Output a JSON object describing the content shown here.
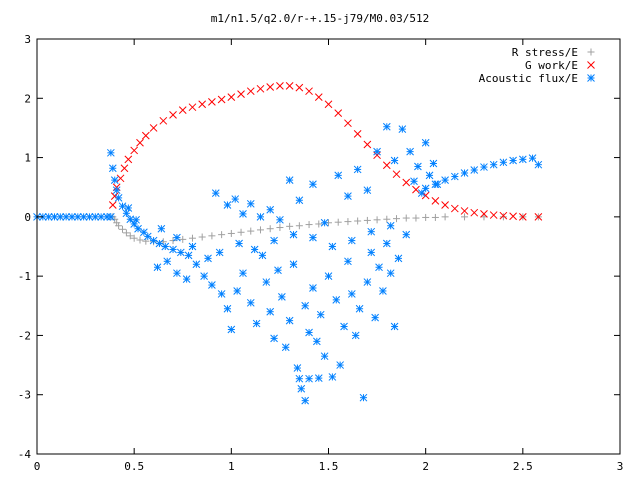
{
  "colors": {
    "r_stress": "#a0a0a0",
    "g_work": "#ff0000",
    "acoustic_flux": "#0080ff",
    "axis": "#000000"
  },
  "chart_data": {
    "type": "scatter",
    "title": "m1/n1.5/q2.0/r-+.15-j79/M0.03/512",
    "xlabel": "",
    "ylabel": "",
    "xlim": [
      0,
      3
    ],
    "ylim": [
      -4,
      3
    ],
    "xticks": [
      "0",
      "0.5",
      "1",
      "1.5",
      "2",
      "2.5",
      "3"
    ],
    "yticks": [
      "3",
      "2",
      "1",
      "0",
      "-1",
      "-2",
      "-3",
      "-4"
    ],
    "grid": false,
    "legend_position": "top-right",
    "series": [
      {
        "name": "R stress/E",
        "marker": "+",
        "color": "#a0a0a0",
        "points": [
          [
            0.39,
            0.0
          ],
          [
            0.4,
            -0.04
          ],
          [
            0.41,
            -0.1
          ],
          [
            0.42,
            -0.15
          ],
          [
            0.44,
            -0.21
          ],
          [
            0.46,
            -0.27
          ],
          [
            0.48,
            -0.32
          ],
          [
            0.5,
            -0.36
          ],
          [
            0.53,
            -0.39
          ],
          [
            0.56,
            -0.41
          ],
          [
            0.6,
            -0.42
          ],
          [
            0.65,
            -0.42
          ],
          [
            0.7,
            -0.4
          ],
          [
            0.75,
            -0.38
          ],
          [
            0.8,
            -0.36
          ],
          [
            0.85,
            -0.34
          ],
          [
            0.9,
            -0.32
          ],
          [
            0.95,
            -0.3
          ],
          [
            1.0,
            -0.28
          ],
          [
            1.05,
            -0.26
          ],
          [
            1.1,
            -0.24
          ],
          [
            1.15,
            -0.22
          ],
          [
            1.2,
            -0.2
          ],
          [
            1.25,
            -0.18
          ],
          [
            1.3,
            -0.16
          ],
          [
            1.35,
            -0.15
          ],
          [
            1.4,
            -0.13
          ],
          [
            1.45,
            -0.12
          ],
          [
            1.5,
            -0.1
          ],
          [
            1.55,
            -0.09
          ],
          [
            1.6,
            -0.08
          ],
          [
            1.65,
            -0.07
          ],
          [
            1.7,
            -0.06
          ],
          [
            1.75,
            -0.05
          ],
          [
            1.8,
            -0.04
          ],
          [
            1.85,
            -0.03
          ],
          [
            1.9,
            -0.02
          ],
          [
            1.95,
            -0.02
          ],
          [
            2.0,
            -0.01
          ],
          [
            2.05,
            -0.01
          ],
          [
            2.1,
            0.0
          ],
          [
            2.2,
            0.0
          ],
          [
            2.3,
            0.0
          ],
          [
            2.4,
            0.0
          ],
          [
            2.5,
            0.0
          ],
          [
            2.58,
            0.0
          ]
        ]
      },
      {
        "name": "G work/E",
        "marker": "x",
        "color": "#ff0000",
        "points": [
          [
            0.39,
            0.2
          ],
          [
            0.4,
            0.35
          ],
          [
            0.41,
            0.5
          ],
          [
            0.43,
            0.65
          ],
          [
            0.45,
            0.82
          ],
          [
            0.47,
            0.97
          ],
          [
            0.5,
            1.12
          ],
          [
            0.53,
            1.25
          ],
          [
            0.56,
            1.37
          ],
          [
            0.6,
            1.5
          ],
          [
            0.65,
            1.62
          ],
          [
            0.7,
            1.72
          ],
          [
            0.75,
            1.8
          ],
          [
            0.8,
            1.85
          ],
          [
            0.85,
            1.9
          ],
          [
            0.9,
            1.94
          ],
          [
            0.95,
            1.98
          ],
          [
            1.0,
            2.02
          ],
          [
            1.05,
            2.07
          ],
          [
            1.1,
            2.12
          ],
          [
            1.15,
            2.16
          ],
          [
            1.2,
            2.19
          ],
          [
            1.25,
            2.21
          ],
          [
            1.3,
            2.21
          ],
          [
            1.35,
            2.18
          ],
          [
            1.4,
            2.12
          ],
          [
            1.45,
            2.02
          ],
          [
            1.5,
            1.9
          ],
          [
            1.55,
            1.75
          ],
          [
            1.6,
            1.58
          ],
          [
            1.65,
            1.4
          ],
          [
            1.7,
            1.22
          ],
          [
            1.75,
            1.04
          ],
          [
            1.8,
            0.87
          ],
          [
            1.85,
            0.72
          ],
          [
            1.9,
            0.58
          ],
          [
            1.95,
            0.46
          ],
          [
            2.0,
            0.36
          ],
          [
            2.05,
            0.27
          ],
          [
            2.1,
            0.2
          ],
          [
            2.15,
            0.14
          ],
          [
            2.2,
            0.1
          ],
          [
            2.25,
            0.07
          ],
          [
            2.3,
            0.05
          ],
          [
            2.35,
            0.03
          ],
          [
            2.4,
            0.02
          ],
          [
            2.45,
            0.01
          ],
          [
            2.5,
            0.0
          ],
          [
            2.58,
            0.0
          ]
        ]
      },
      {
        "name": "Acoustic flux/E",
        "marker": "*",
        "color": "#0080ff",
        "points": [
          [
            0.0,
            0.0
          ],
          [
            0.03,
            0.0
          ],
          [
            0.06,
            0.0
          ],
          [
            0.09,
            0.0
          ],
          [
            0.12,
            0.0
          ],
          [
            0.15,
            0.0
          ],
          [
            0.18,
            0.0
          ],
          [
            0.21,
            0.0
          ],
          [
            0.24,
            0.0
          ],
          [
            0.27,
            0.0
          ],
          [
            0.3,
            0.0
          ],
          [
            0.33,
            0.0
          ],
          [
            0.36,
            0.0
          ],
          [
            0.38,
            0.0
          ],
          [
            0.38,
            1.08
          ],
          [
            0.39,
            0.82
          ],
          [
            0.4,
            0.62
          ],
          [
            0.41,
            0.45
          ],
          [
            0.42,
            0.32
          ],
          [
            0.44,
            0.18
          ],
          [
            0.46,
            0.06
          ],
          [
            0.48,
            -0.04
          ],
          [
            0.5,
            -0.12
          ],
          [
            0.52,
            -0.2
          ],
          [
            0.55,
            -0.26
          ],
          [
            0.47,
            0.15
          ],
          [
            0.51,
            -0.05
          ],
          [
            0.57,
            -0.33
          ],
          [
            0.6,
            -0.4
          ],
          [
            0.63,
            -0.45
          ],
          [
            0.66,
            -0.5
          ],
          [
            0.7,
            -0.55
          ],
          [
            0.74,
            -0.6
          ],
          [
            0.78,
            -0.65
          ],
          [
            0.62,
            -0.85
          ],
          [
            0.67,
            -0.75
          ],
          [
            0.72,
            -0.95
          ],
          [
            0.77,
            -1.05
          ],
          [
            0.82,
            -0.8
          ],
          [
            0.86,
            -1.0
          ],
          [
            0.9,
            -1.15
          ],
          [
            0.95,
            -1.3
          ],
          [
            0.98,
            -1.55
          ],
          [
            1.0,
            -1.9
          ],
          [
            1.03,
            -1.25
          ],
          [
            1.06,
            -0.95
          ],
          [
            1.1,
            -1.45
          ],
          [
            1.13,
            -1.8
          ],
          [
            1.16,
            -0.65
          ],
          [
            1.18,
            -1.1
          ],
          [
            1.2,
            -1.6
          ],
          [
            1.22,
            -2.05
          ],
          [
            1.24,
            -0.9
          ],
          [
            1.26,
            -1.35
          ],
          [
            1.28,
            -2.2
          ],
          [
            1.3,
            -1.75
          ],
          [
            1.32,
            -0.8
          ],
          [
            1.34,
            -2.55
          ],
          [
            1.36,
            -2.9
          ],
          [
            1.38,
            -1.5
          ],
          [
            1.4,
            -1.95
          ],
          [
            1.42,
            -1.2
          ],
          [
            1.44,
            -2.1
          ],
          [
            1.46,
            -1.65
          ],
          [
            1.48,
            -2.35
          ],
          [
            1.5,
            -1.0
          ],
          [
            1.52,
            -2.7
          ],
          [
            1.54,
            -1.4
          ],
          [
            1.56,
            -2.5
          ],
          [
            1.58,
            -1.85
          ],
          [
            1.6,
            -0.75
          ],
          [
            1.62,
            -1.3
          ],
          [
            1.64,
            -2.0
          ],
          [
            1.66,
            -1.55
          ],
          [
            1.68,
            -3.05
          ],
          [
            1.7,
            -1.1
          ],
          [
            1.72,
            -0.6
          ],
          [
            1.74,
            -1.7
          ],
          [
            1.76,
            -0.85
          ],
          [
            1.78,
            -1.25
          ],
          [
            1.8,
            -0.45
          ],
          [
            1.82,
            -0.95
          ],
          [
            1.84,
            -1.85
          ],
          [
            1.86,
            -0.7
          ],
          [
            1.38,
            -3.1
          ],
          [
            1.35,
            -2.73
          ],
          [
            1.45,
            -2.72
          ],
          [
            1.4,
            -2.73
          ],
          [
            0.92,
            0.4
          ],
          [
            0.98,
            0.2
          ],
          [
            1.02,
            0.3
          ],
          [
            1.06,
            0.05
          ],
          [
            1.1,
            0.22
          ],
          [
            1.15,
            0.0
          ],
          [
            1.2,
            0.12
          ],
          [
            1.25,
            -0.05
          ],
          [
            1.3,
            0.62
          ],
          [
            1.35,
            0.28
          ],
          [
            1.42,
            0.55
          ],
          [
            1.48,
            -0.1
          ],
          [
            1.55,
            0.7
          ],
          [
            1.6,
            0.35
          ],
          [
            1.65,
            0.8
          ],
          [
            1.7,
            0.45
          ],
          [
            1.75,
            1.1
          ],
          [
            1.8,
            1.52
          ],
          [
            1.84,
            0.95
          ],
          [
            1.88,
            1.48
          ],
          [
            1.92,
            1.1
          ],
          [
            1.94,
            0.6
          ],
          [
            1.96,
            0.85
          ],
          [
            1.98,
            0.4
          ],
          [
            2.0,
            1.25
          ],
          [
            2.02,
            0.7
          ],
          [
            2.04,
            0.9
          ],
          [
            2.06,
            0.55
          ],
          [
            2.0,
            0.48
          ],
          [
            2.05,
            0.55
          ],
          [
            2.1,
            0.62
          ],
          [
            2.15,
            0.68
          ],
          [
            2.2,
            0.74
          ],
          [
            2.25,
            0.79
          ],
          [
            2.3,
            0.84
          ],
          [
            2.35,
            0.88
          ],
          [
            2.4,
            0.92
          ],
          [
            2.45,
            0.95
          ],
          [
            2.5,
            0.97
          ],
          [
            2.55,
            0.99
          ],
          [
            2.58,
            0.88
          ],
          [
            0.64,
            -0.2
          ],
          [
            0.72,
            -0.35
          ],
          [
            0.8,
            -0.5
          ],
          [
            0.88,
            -0.7
          ],
          [
            0.94,
            -0.6
          ],
          [
            1.04,
            -0.45
          ],
          [
            1.12,
            -0.55
          ],
          [
            1.22,
            -0.4
          ],
          [
            1.32,
            -0.3
          ],
          [
            1.42,
            -0.35
          ],
          [
            1.52,
            -0.5
          ],
          [
            1.62,
            -0.4
          ],
          [
            1.72,
            -0.25
          ],
          [
            1.82,
            -0.15
          ],
          [
            1.9,
            -0.3
          ]
        ]
      }
    ]
  }
}
